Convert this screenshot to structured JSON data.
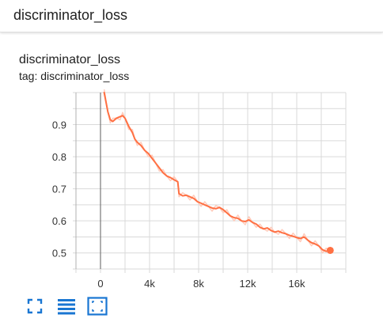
{
  "header": {
    "title": "discriminator_loss"
  },
  "card": {
    "title": "discriminator_loss",
    "tag": "tag: discriminator_loss"
  },
  "toolbar": {
    "icons": [
      "fullscreen-icon",
      "data-table-icon",
      "fit-domain-icon"
    ]
  },
  "colors": {
    "line": "#ff7043",
    "line_light": "#ffccbc",
    "grid": "#d9d9d9",
    "icon": "#1976d2"
  },
  "chart_data": {
    "type": "line",
    "title": "",
    "xlabel": "",
    "ylabel": "",
    "x_ticks": [
      0,
      4000,
      8000,
      12000,
      16000
    ],
    "x_tick_labels": [
      "0",
      "4k",
      "8k",
      "12k",
      "16k"
    ],
    "y_ticks": [
      0.5,
      0.6,
      0.7,
      0.8,
      0.9
    ],
    "y_tick_labels": [
      "0.5",
      "0.6",
      "0.7",
      "0.8",
      "0.9"
    ],
    "xlim": [
      -2000,
      20000
    ],
    "ylim": [
      0.45,
      1.0
    ],
    "grid": true,
    "series": [
      {
        "smoothed": true,
        "x": [
          300,
          600,
          800,
          1000,
          1300,
          1600,
          1800,
          2000,
          2300,
          2600,
          2800,
          3000,
          3300,
          3600,
          3900,
          4200,
          4500,
          4800,
          5100,
          5400,
          5700,
          6000,
          6300,
          6400,
          6700,
          7000,
          7300,
          7600,
          7900,
          8200,
          8500,
          8800,
          9100,
          9400,
          9700,
          10000,
          10300,
          10600,
          10900,
          11200,
          11500,
          11800,
          12100,
          12400,
          12700,
          13000,
          13300,
          13600,
          13900,
          14200,
          14500,
          14800,
          15100,
          15400,
          15700,
          16000,
          16300,
          16600,
          16900,
          17200,
          17500,
          17800,
          18100,
          18400,
          18600
        ],
        "y": [
          1.0,
          0.94,
          0.915,
          0.91,
          0.92,
          0.925,
          0.928,
          0.92,
          0.895,
          0.875,
          0.855,
          0.845,
          0.835,
          0.82,
          0.81,
          0.795,
          0.78,
          0.765,
          0.75,
          0.74,
          0.735,
          0.728,
          0.722,
          0.685,
          0.678,
          0.68,
          0.675,
          0.67,
          0.66,
          0.655,
          0.65,
          0.645,
          0.64,
          0.638,
          0.642,
          0.635,
          0.625,
          0.615,
          0.61,
          0.608,
          0.6,
          0.598,
          0.603,
          0.595,
          0.59,
          0.58,
          0.575,
          0.578,
          0.57,
          0.565,
          0.568,
          0.563,
          0.56,
          0.555,
          0.552,
          0.548,
          0.545,
          0.55,
          0.54,
          0.532,
          0.528,
          0.522,
          0.51,
          0.505,
          0.508
        ]
      }
    ]
  }
}
